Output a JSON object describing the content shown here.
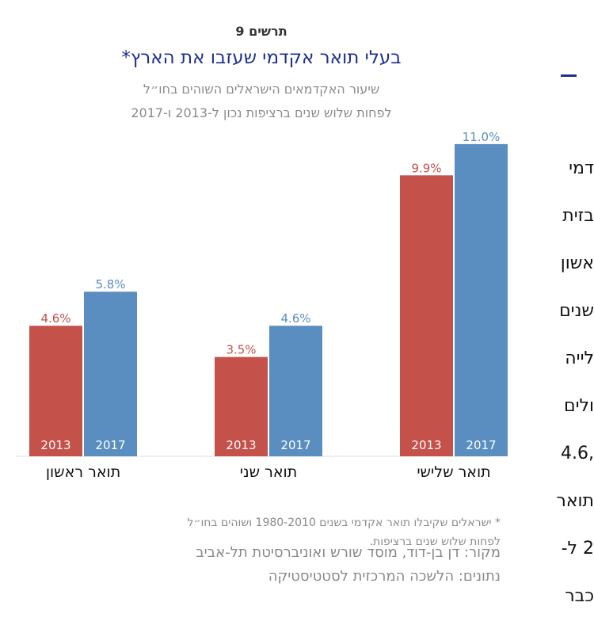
{
  "figure": {
    "number": "תרשים 9",
    "title": "בעלי תואר אקדמי שעזבו את הארץ*",
    "subtitle_lines": [
      "שיעור האקדמאים הישראלים השוהים בחו״ל",
      "לפחות שלוש שנים ברציפות נכון ל-2013 ו-2017"
    ],
    "footnote_lines": [
      "* ישראלים שקיבלו תואר אקדמי בשנים 1980-2010 ושוהים בחו״ל",
      "לפחות שלוש שנים ברציפות."
    ],
    "source_lines": [
      "מקור: דן בן-דוד, מוסד שורש ואוניברסיטת תל-אביב",
      "נתונים: הלשכה המרכזית לסטטיסטיקה"
    ]
  },
  "colors": {
    "series_2013": "#c4514a",
    "series_2017": "#5a8ec0",
    "title": "#1f2f8f",
    "muted": "#8a8a8a"
  },
  "chart_data": {
    "type": "bar",
    "categories": [
      "תואר ראשון",
      "תואר שני",
      "תואר שלישי"
    ],
    "series": [
      {
        "name": "2013",
        "values": [
          4.6,
          3.5,
          9.9
        ],
        "labels": [
          "4.6%",
          "3.5%",
          "9.9%"
        ]
      },
      {
        "name": "2017",
        "values": [
          5.8,
          4.6,
          11.0
        ],
        "labels": [
          "5.8%",
          "4.6%",
          "11.0%"
        ]
      }
    ],
    "title": "בעלי תואר אקדמי שעזבו את הארץ*",
    "ylim": [
      0,
      11.5
    ],
    "grid": false,
    "legend": "none"
  },
  "side_text": {
    "lines": [
      "דמי",
      "בזית",
      "אשון",
      "שנים",
      "לייה",
      "ולים",
      ",4.6",
      "תואר",
      "2 ל-",
      "כבר"
    ]
  }
}
